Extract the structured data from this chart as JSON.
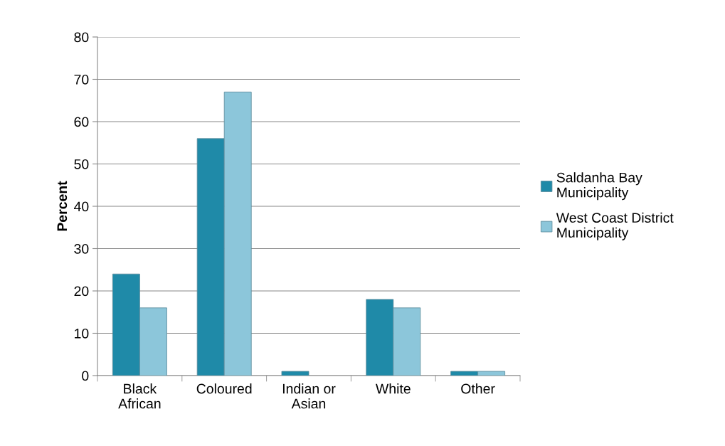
{
  "chart_data": {
    "type": "bar",
    "ylabel": "Percent",
    "categories": [
      "Black\nAfrican",
      "Coloured",
      "Indian or\nAsian",
      "White",
      "Other"
    ],
    "series": [
      {
        "name": "Saldanha Bay\nMunicipality",
        "color": "#1f8aa8",
        "values": [
          24,
          56,
          1,
          18,
          1
        ]
      },
      {
        "name": "West Coast District\nMunicipality",
        "color": "#8cc6da",
        "values": [
          16,
          67,
          null,
          16,
          1
        ]
      }
    ],
    "ylim": [
      0,
      80
    ],
    "yticks": [
      0,
      10,
      20,
      30,
      40,
      50,
      60,
      70,
      80
    ],
    "grid": "y",
    "legend": "right"
  }
}
